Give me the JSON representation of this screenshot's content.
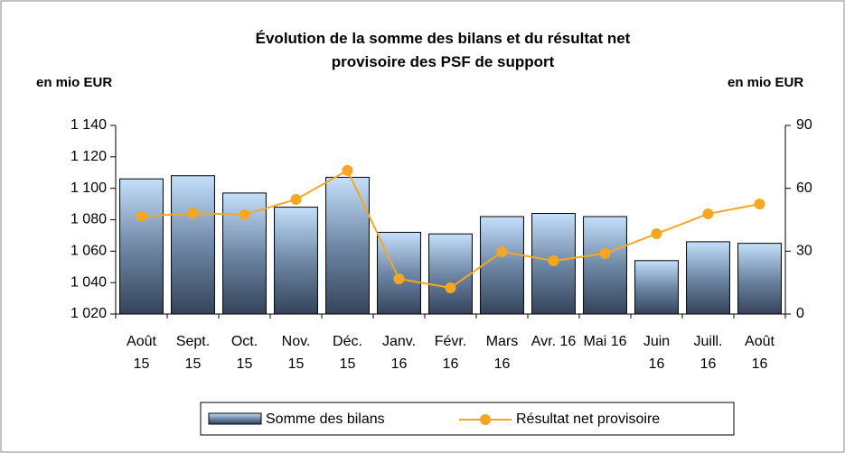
{
  "chart_data": {
    "type": "bar",
    "title": "Évolution de la somme des bilans et du résultat net provisoire des PSF de support",
    "y_label": "en mio EUR",
    "y2_label": "en mio EUR",
    "categories": [
      "Août 15",
      "Sept. 15",
      "Oct. 15",
      "Nov. 15",
      "Déc. 15",
      "Janv. 16",
      "Févr. 16",
      "Mars 16",
      "Avr. 16",
      "Mai 16",
      "Juin 16",
      "Juill. 16",
      "Août 16"
    ],
    "series": [
      {
        "name": "Somme des bilans",
        "type": "bar",
        "color": "#8fb4dc",
        "axis": "y",
        "values": [
          1106,
          1108,
          1097,
          1088,
          1107,
          1072,
          1071,
          1082,
          1084,
          1082,
          1054,
          1066,
          1065
        ]
      },
      {
        "name": "Résultat net provisoire",
        "type": "line",
        "color": "#f5a623",
        "axis": "y2",
        "values": [
          46.5,
          48.2,
          47.4,
          54.7,
          68.5,
          16.8,
          12.5,
          29.7,
          25.4,
          28.9,
          38.3,
          47.8,
          52.5
        ]
      }
    ],
    "ylim": [
      1020,
      1140
    ],
    "yticks": [
      {
        "value": 1020,
        "label": "1 020"
      },
      {
        "value": 1040,
        "label": "1 040"
      },
      {
        "value": 1060,
        "label": "1 060"
      },
      {
        "value": 1080,
        "label": "1 080"
      },
      {
        "value": 1100,
        "label": "1 100"
      },
      {
        "value": 1120,
        "label": "1 120"
      },
      {
        "value": 1140,
        "label": "1 140"
      }
    ],
    "y2lim": [
      0,
      90
    ],
    "y2ticks": [
      0,
      30,
      60,
      90
    ],
    "legend": "bottom",
    "grid": false
  }
}
